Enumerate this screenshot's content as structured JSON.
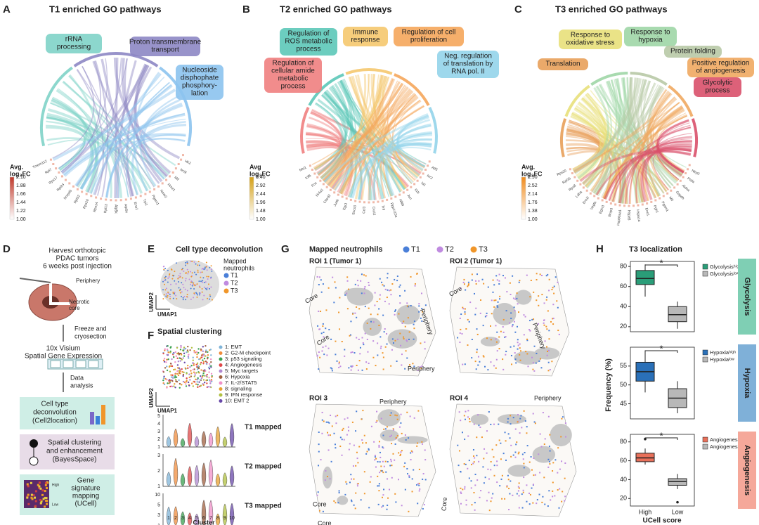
{
  "panels": {
    "A": {
      "letter": "A",
      "title": "T1 enriched GO pathways",
      "pathways": [
        {
          "lines": [
            "rRNA",
            "processing"
          ],
          "color": "#7fd3c8"
        },
        {
          "lines": [
            "Proton transmembrane",
            "transport"
          ],
          "color": "#8d87c4"
        },
        {
          "lines": [
            "Nucleoside",
            "disphophate",
            "phosphory-",
            "lation"
          ],
          "color": "#8cc3ee"
        }
      ],
      "legend_title": [
        "Avg.",
        "log₂FC"
      ],
      "legend_ticks": [
        "2.10",
        "1.88",
        "1.66",
        "1.44",
        "1.22",
        "1.00"
      ],
      "legend_color": "#c0392b",
      "genes": [
        "Hk2",
        "Ier5l",
        "Mif",
        "Nme1",
        "Nme2",
        "Pgam1",
        "Tpi1",
        "Eno1",
        "Atp5e",
        "Atp5k",
        "Rpl13",
        "Rps14",
        "Rps10",
        "Rpl32",
        "Snrpd3",
        "Rpl24",
        "Rps17",
        "Rpl7",
        "Tmem112"
      ]
    },
    "B": {
      "letter": "B",
      "title": "T2 enriched GO pathways",
      "pathways": [
        {
          "lines": [
            "Regulation of",
            "cellular amide",
            "metabolic",
            "process"
          ],
          "color": "#f08080"
        },
        {
          "lines": [
            "Regulation of",
            "ROS metabolic",
            "process"
          ],
          "color": "#5cc8b8"
        },
        {
          "lines": [
            "Immune",
            "response"
          ],
          "color": "#f5c86e"
        },
        {
          "lines": [
            "Regulation of cell",
            "proliferation"
          ],
          "color": "#f5a65b"
        },
        {
          "lines": [
            "Neg. regulation",
            "of translation by",
            "RNA pol. II"
          ],
          "color": "#94d4ea"
        }
      ],
      "legend_title": [
        "Avg",
        "log₂FC"
      ],
      "legend_ticks": [
        "3.40",
        "2.92",
        "2.44",
        "1.96",
        "1.48",
        "1.00"
      ],
      "legend_color": "#d4a017",
      "genes": [
        "Atf3",
        "Ier3",
        "Id1",
        "Il1b",
        "Jun",
        "Nfkb",
        "Ppp1r15a",
        "Tnf",
        "Cxcl2",
        "Ccl3",
        "Socs3",
        "Egr1",
        "Junb",
        "Cited2",
        "Nr4a1",
        "Fos",
        "Klf6",
        "Mcl1"
      ]
    },
    "C": {
      "letter": "C",
      "title": "T3 enriched GO pathways",
      "pathways": [
        {
          "lines": [
            "Translation"
          ],
          "color": "#e8a05a"
        },
        {
          "lines": [
            "Response to",
            "oxidative stress"
          ],
          "color": "#e8e07a"
        },
        {
          "lines": [
            "Response to",
            "hypoxia"
          ],
          "color": "#9fd6a6"
        },
        {
          "lines": [
            "Protein folding"
          ],
          "color": "#b8c9a6"
        },
        {
          "lines": [
            "Positive regulation",
            "of angiogenesis"
          ],
          "color": "#f0a860"
        },
        {
          "lines": [
            "Glycolytic",
            "process"
          ],
          "color": "#d9506a"
        }
      ],
      "legend_title": [
        "Avg.",
        "log₂FC"
      ],
      "legend_ticks": [
        "2.90",
        "2.52",
        "2.14",
        "1.76",
        "1.38",
        "1.00"
      ],
      "legend_color": "#f08c1e",
      "genes": [
        "Nlrp3",
        "Ptsla",
        "Aldoa",
        "Gapdh",
        "Mif",
        "Pgam1",
        "Pgk1",
        "Eno1",
        "Hspa1a",
        "Hspa5",
        "Hsp90aa1",
        "Bnip3",
        "Egln3",
        "Vegfa",
        "Ero1l",
        "Ldha",
        "Rps8",
        "Rpl35",
        "Rps20"
      ]
    },
    "D": {
      "letter": "D",
      "harvest": [
        "Harvest orthotopic",
        "PDAC tumors",
        "6 weeks post injection"
      ],
      "periphery": "Periphery",
      "necrotic": [
        "Necrotic",
        "core"
      ],
      "freeze": [
        "Freeze and",
        "cryosection"
      ],
      "visium": [
        "10x Visium",
        "Spatial Gene Expression"
      ],
      "analysis": [
        "Data",
        "analysis"
      ],
      "step1": [
        "Cell type",
        "deconvolution",
        "(Cell2location)"
      ],
      "step2": [
        "Spatial clustering",
        "and enhancement",
        "(BayesSpace)"
      ],
      "step3": [
        "Gene",
        "signature",
        "mapping",
        "(UCell)"
      ],
      "scale": [
        "High",
        "Low"
      ]
    },
    "E": {
      "letter": "E",
      "title": "Cell type deconvolution",
      "legend_title": [
        "Mapped",
        "neutrophils"
      ],
      "groups": [
        {
          "name": "T1",
          "color": "#4a7fd8"
        },
        {
          "name": "T2",
          "color": "#c08be0"
        },
        {
          "name": "T3",
          "color": "#f0962a"
        }
      ],
      "xaxis": "UMAP1",
      "yaxis": "UMAP2"
    },
    "F": {
      "letter": "F",
      "title": "Spatial clustering",
      "xaxis": "UMAP1",
      "yaxis": "UMAP2",
      "clusters": [
        {
          "name": "1: EMT",
          "color": "#7fb4d8"
        },
        {
          "name": "2: G2-M checkpoint",
          "color": "#f08c3c"
        },
        {
          "name": "3: p53 signaling",
          "color": "#3aa050"
        },
        {
          "name": "4: Angiogenesis",
          "color": "#e04848"
        },
        {
          "name": "5: Myc targets",
          "color": "#b088d0"
        },
        {
          "name": "6: Hypoxia",
          "color": "#a06040"
        },
        {
          "name": "7: IL-2/STAT5",
          "color": "#f090c8"
        },
        {
          "name": "8: signaling",
          "color": "#e8a030"
        },
        {
          "name": "9: IFN response",
          "color": "#b0c040"
        },
        {
          "name": "10: EMT 2",
          "color": "#6848a8"
        }
      ],
      "rows": [
        {
          "label": "T1 mapped",
          "ticks": [
            "1",
            "2",
            "3",
            "4",
            "5"
          ]
        },
        {
          "label": "T2 mapped",
          "ticks": [
            "1",
            "2",
            "3"
          ]
        },
        {
          "label": "T3 mapped",
          "ticks": [
            "1",
            "3",
            "5",
            "10"
          ]
        }
      ],
      "cluster_ticks": [
        "1",
        "2",
        "3",
        "4",
        "5",
        "6",
        "7",
        "8",
        "9",
        "10"
      ],
      "cluster_label": "Cluster"
    },
    "G": {
      "letter": "G",
      "title": "Mapped neutrophils",
      "groups": [
        "T1",
        "T2",
        "T3"
      ],
      "rois": [
        {
          "title": "ROI 1 (Tumor 1)",
          "labels": [
            "Core",
            "Core",
            "Periphery",
            "Periphery"
          ]
        },
        {
          "title": "ROI 2 (Tumor 1)",
          "labels": [
            "Core",
            "Periphery"
          ]
        },
        {
          "title": "ROI 3",
          "labels": [
            "Periphery",
            "Core",
            "Core"
          ]
        },
        {
          "title": "ROI 4",
          "labels": [
            "Periphery",
            "Core"
          ]
        }
      ]
    },
    "H": {
      "letter": "H",
      "title": "T3 localization",
      "ylabel": "Frequency (%)",
      "xlabel": "UCell score",
      "categories": [
        "High",
        "Low"
      ],
      "sig": "*",
      "subpanels": [
        {
          "side": "Glycolysis",
          "side_color": "#7fcfb4",
          "legend": [
            "Glycolysisʰⁱᵍʰ",
            "Glycolysisˡᵒʷ"
          ],
          "colors": [
            "#2a9d78",
            "#b8b8b8"
          ],
          "ylim": [
            15,
            85
          ],
          "yticks": [
            20,
            40,
            60,
            80
          ],
          "boxes": [
            {
              "whisker_low": 50,
              "q1": 62,
              "median": 68,
              "q3": 76,
              "whisker_high": 82,
              "outliers": []
            },
            {
              "whisker_low": 18,
              "q1": 25,
              "median": 32,
              "q3": 40,
              "whisker_high": 45,
              "outliers": []
            }
          ]
        },
        {
          "side": "Hypoxia",
          "side_color": "#7fb0d8",
          "legend": [
            "Hypoxiaʰⁱᵍʰ",
            "Hypoxiaˡᵒʷ"
          ],
          "colors": [
            "#2a70b8",
            "#b8b8b8"
          ],
          "ylim": [
            41,
            60
          ],
          "yticks": [
            45,
            50,
            55
          ],
          "boxes": [
            {
              "whisker_low": 48,
              "q1": 51,
              "median": 53.5,
              "q3": 56,
              "whisker_high": 59,
              "outliers": []
            },
            {
              "whisker_low": 42.5,
              "q1": 44,
              "median": 46.5,
              "q3": 49,
              "whisker_high": 51,
              "outliers": []
            }
          ]
        },
        {
          "side": "Angiogenesis",
          "side_color": "#f5a89a",
          "legend": [
            "Angiogenesisʰⁱᵍʰ",
            "Angiogenesisˡᵒʷ"
          ],
          "colors": [
            "#e8705a",
            "#b8b8b8"
          ],
          "ylim": [
            12,
            88
          ],
          "yticks": [
            20,
            40,
            60,
            80
          ],
          "boxes": [
            {
              "whisker_low": 56,
              "q1": 59,
              "median": 63,
              "q3": 68,
              "whisker_high": 73,
              "outliers": [
                83
              ]
            },
            {
              "whisker_low": 30,
              "q1": 34,
              "median": 38,
              "q3": 41,
              "whisker_high": 46,
              "outliers": [
                16
              ]
            }
          ]
        }
      ]
    }
  }
}
